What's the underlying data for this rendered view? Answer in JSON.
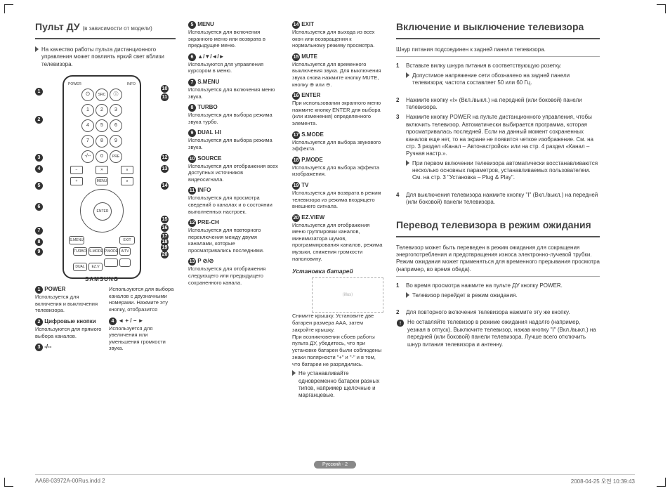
{
  "page": {
    "footer_label": "Русский - 2",
    "print_file": "AA68-03972A-00Rus.indd   2",
    "print_date": "2008-04-25   오전 10:39:43"
  },
  "remote": {
    "title": "Пульт ДУ",
    "subtitle": "(в зависимости от модели)",
    "quality_note": "На качество работы пульта дистанционного управления может повлиять яркий свет вблизи телевизора.",
    "brand": "SAMSUNG",
    "labels": {
      "power": "POWER",
      "enter": "ENTER"
    },
    "keypad": [
      "1",
      "2",
      "3",
      "4",
      "5",
      "6",
      "7",
      "8",
      "9",
      "0"
    ],
    "left_desc": [
      {
        "n": "1",
        "t": "POWER",
        "d": "Используется для включения и выключения телевизора."
      },
      {
        "n": "2",
        "t": "Цифровые кнопки",
        "d": "Используются для прямого выбора каналов."
      },
      {
        "n": "3",
        "t": "-/--",
        "d": ""
      }
    ],
    "left_desc2": [
      {
        "d": "Используются для выбора каналов с двузначными номерами. Нажмите эту кнопку, отобразится"
      },
      {
        "n": "4",
        "t": "◄ + / − ►",
        "d": "Используется для увеличения или уменьшения громкости звука."
      }
    ],
    "mid_desc": [
      {
        "n": "5",
        "t": "MENU",
        "d": "Используется для включения экранного меню или возврата в предыдущее меню."
      },
      {
        "n": "6",
        "t": "▲/▼/◄/►",
        "d": "Используются для управления курсором в меню."
      },
      {
        "n": "7",
        "t": "S.MENU",
        "d": "Используется для включения меню звука."
      },
      {
        "n": "8",
        "t": "TURBO",
        "d": "Используется для выбора режима звука турбо."
      },
      {
        "n": "9",
        "t": "DUAL I-II",
        "d": "Используется для выбора режима звука."
      },
      {
        "n": "10",
        "t": "SOURCE",
        "d": "Используется для отображения всех доступных источников видеосигнала."
      },
      {
        "n": "11",
        "t": "INFO",
        "d": "Используется для просмотра сведений о каналах и о состоянии выполненных настроек."
      },
      {
        "n": "12",
        "t": "PRE-CH",
        "d": "Используется для повторного переключения между двумя каналами, которые просматривались последними."
      },
      {
        "n": "13",
        "t": "P ⊘/⊘",
        "d": "Используется для отображения следующего или предыдущего сохраненного канала."
      }
    ],
    "right_desc": [
      {
        "n": "14",
        "t": "EXIT",
        "d": "Используется для выхода из всех окон или возвращения к нормальному режиму просмотра."
      },
      {
        "n": "15",
        "t": "MUTE",
        "d": "Используется для временного выключения звука. Для выключения звука снова нажмите кнопку MUTE, кнопку ⊕ или ⊖."
      },
      {
        "n": "16",
        "t": "ENTER",
        "d": "При использовании экранного меню нажмите кнопку ENTER для выбора (или изменения) определенного элемента."
      },
      {
        "n": "17",
        "t": "S.MODE",
        "d": "Используется для выбора звукового эффекта."
      },
      {
        "n": "18",
        "t": "P.MODE",
        "d": "Используется для выбора эффекта изображения."
      },
      {
        "n": "19",
        "t": "TV",
        "d": "Используется для возврата в режим телевизора из режима входящего внешнего сигнала."
      },
      {
        "n": "20",
        "t": "EZ.VIEW",
        "d": "Используется для отображения меню группировки каналов, минимизатора шумов, программирования каналов, режима музыки, снижения громкости наполовину."
      }
    ],
    "battery": {
      "heading": "Установка батарей",
      "text1": "Снимите крышку. Установите две батареи размера AAA, затем закройте крышку.",
      "text2": "При возникновении сбоев работы пульта ДУ, убедитесь, что при установке батареи были соблюдены знаки полярности \"+\" и \"-\" и в том, что батареи не разрядились.",
      "note": "Не устанавливайте одновременно батареи разных типов, например щелочные и марганцевые."
    }
  },
  "power_on": {
    "title": "Включение и выключение телевизора",
    "intro": "Шнур питания подсоединен к задней панели телевизора.",
    "steps": [
      {
        "n": "1",
        "txt": "Вставьте вилку шнура питания в соответствующую розетку.",
        "sub": "Допустимое напряжение сети обозначено на задней панели телевизора; частота составляет 50 или 60 Гц."
      },
      {
        "n": "2",
        "txt": "Нажмите кнопку «I» (Вкл./выкл.) на передней (или боковой) панели телевизора."
      },
      {
        "n": "3",
        "txt": "Нажмите кнопку POWER на пульте дистанционного управления, чтобы включить телевизор. Автоматически выбирается программа, которая просматривалась последней. Если на данный момент сохраненных каналов еще нет, то на экране не появится четкое изображение. См. на стр. 3 раздел «Канал – Автонастройка» или на стр. 4 раздел «Канал – Ручная настр.».",
        "sub": "При первом включении телевизора автоматически восстанавливаются несколько основных параметров, устанавливаемых пользователем. См. на стр. 3 \"Установка – Plug & Play\"."
      },
      {
        "n": "4",
        "txt": "Для выключения телевизора нажмите кнопку \"I\" (Вкл./выкл.) на передней (или боковой) панели телевизора."
      }
    ]
  },
  "standby": {
    "title": "Перевод телевизора в режим ожидания",
    "intro": "Телевизор может быть переведен в режим ожидания для сокращения энергопотребления и предотвращения износа электронно-лучевой трубки. Режим ожидания может применяться для временного прерывания просмотра (например, во время обеда).",
    "steps": [
      {
        "n": "1",
        "txt": "Во время просмотра нажмите на пульте ДУ кнопку POWER.",
        "sub": "Телевизор перейдет в режим ожидания."
      },
      {
        "n": "2",
        "txt": "Для повторного включения телевизора нажмите эту же кнопку."
      }
    ],
    "warn": "Не оставляйте телевизор в режиме ожидания надолго (например, уезжая в отпуск). Выключите телевизор, нажав кнопку \"I\" (Вкл./выкл.) на передней (или боковой) панели телевизора. Лучше всего отключить шнур питания телевизора и антенну."
  }
}
